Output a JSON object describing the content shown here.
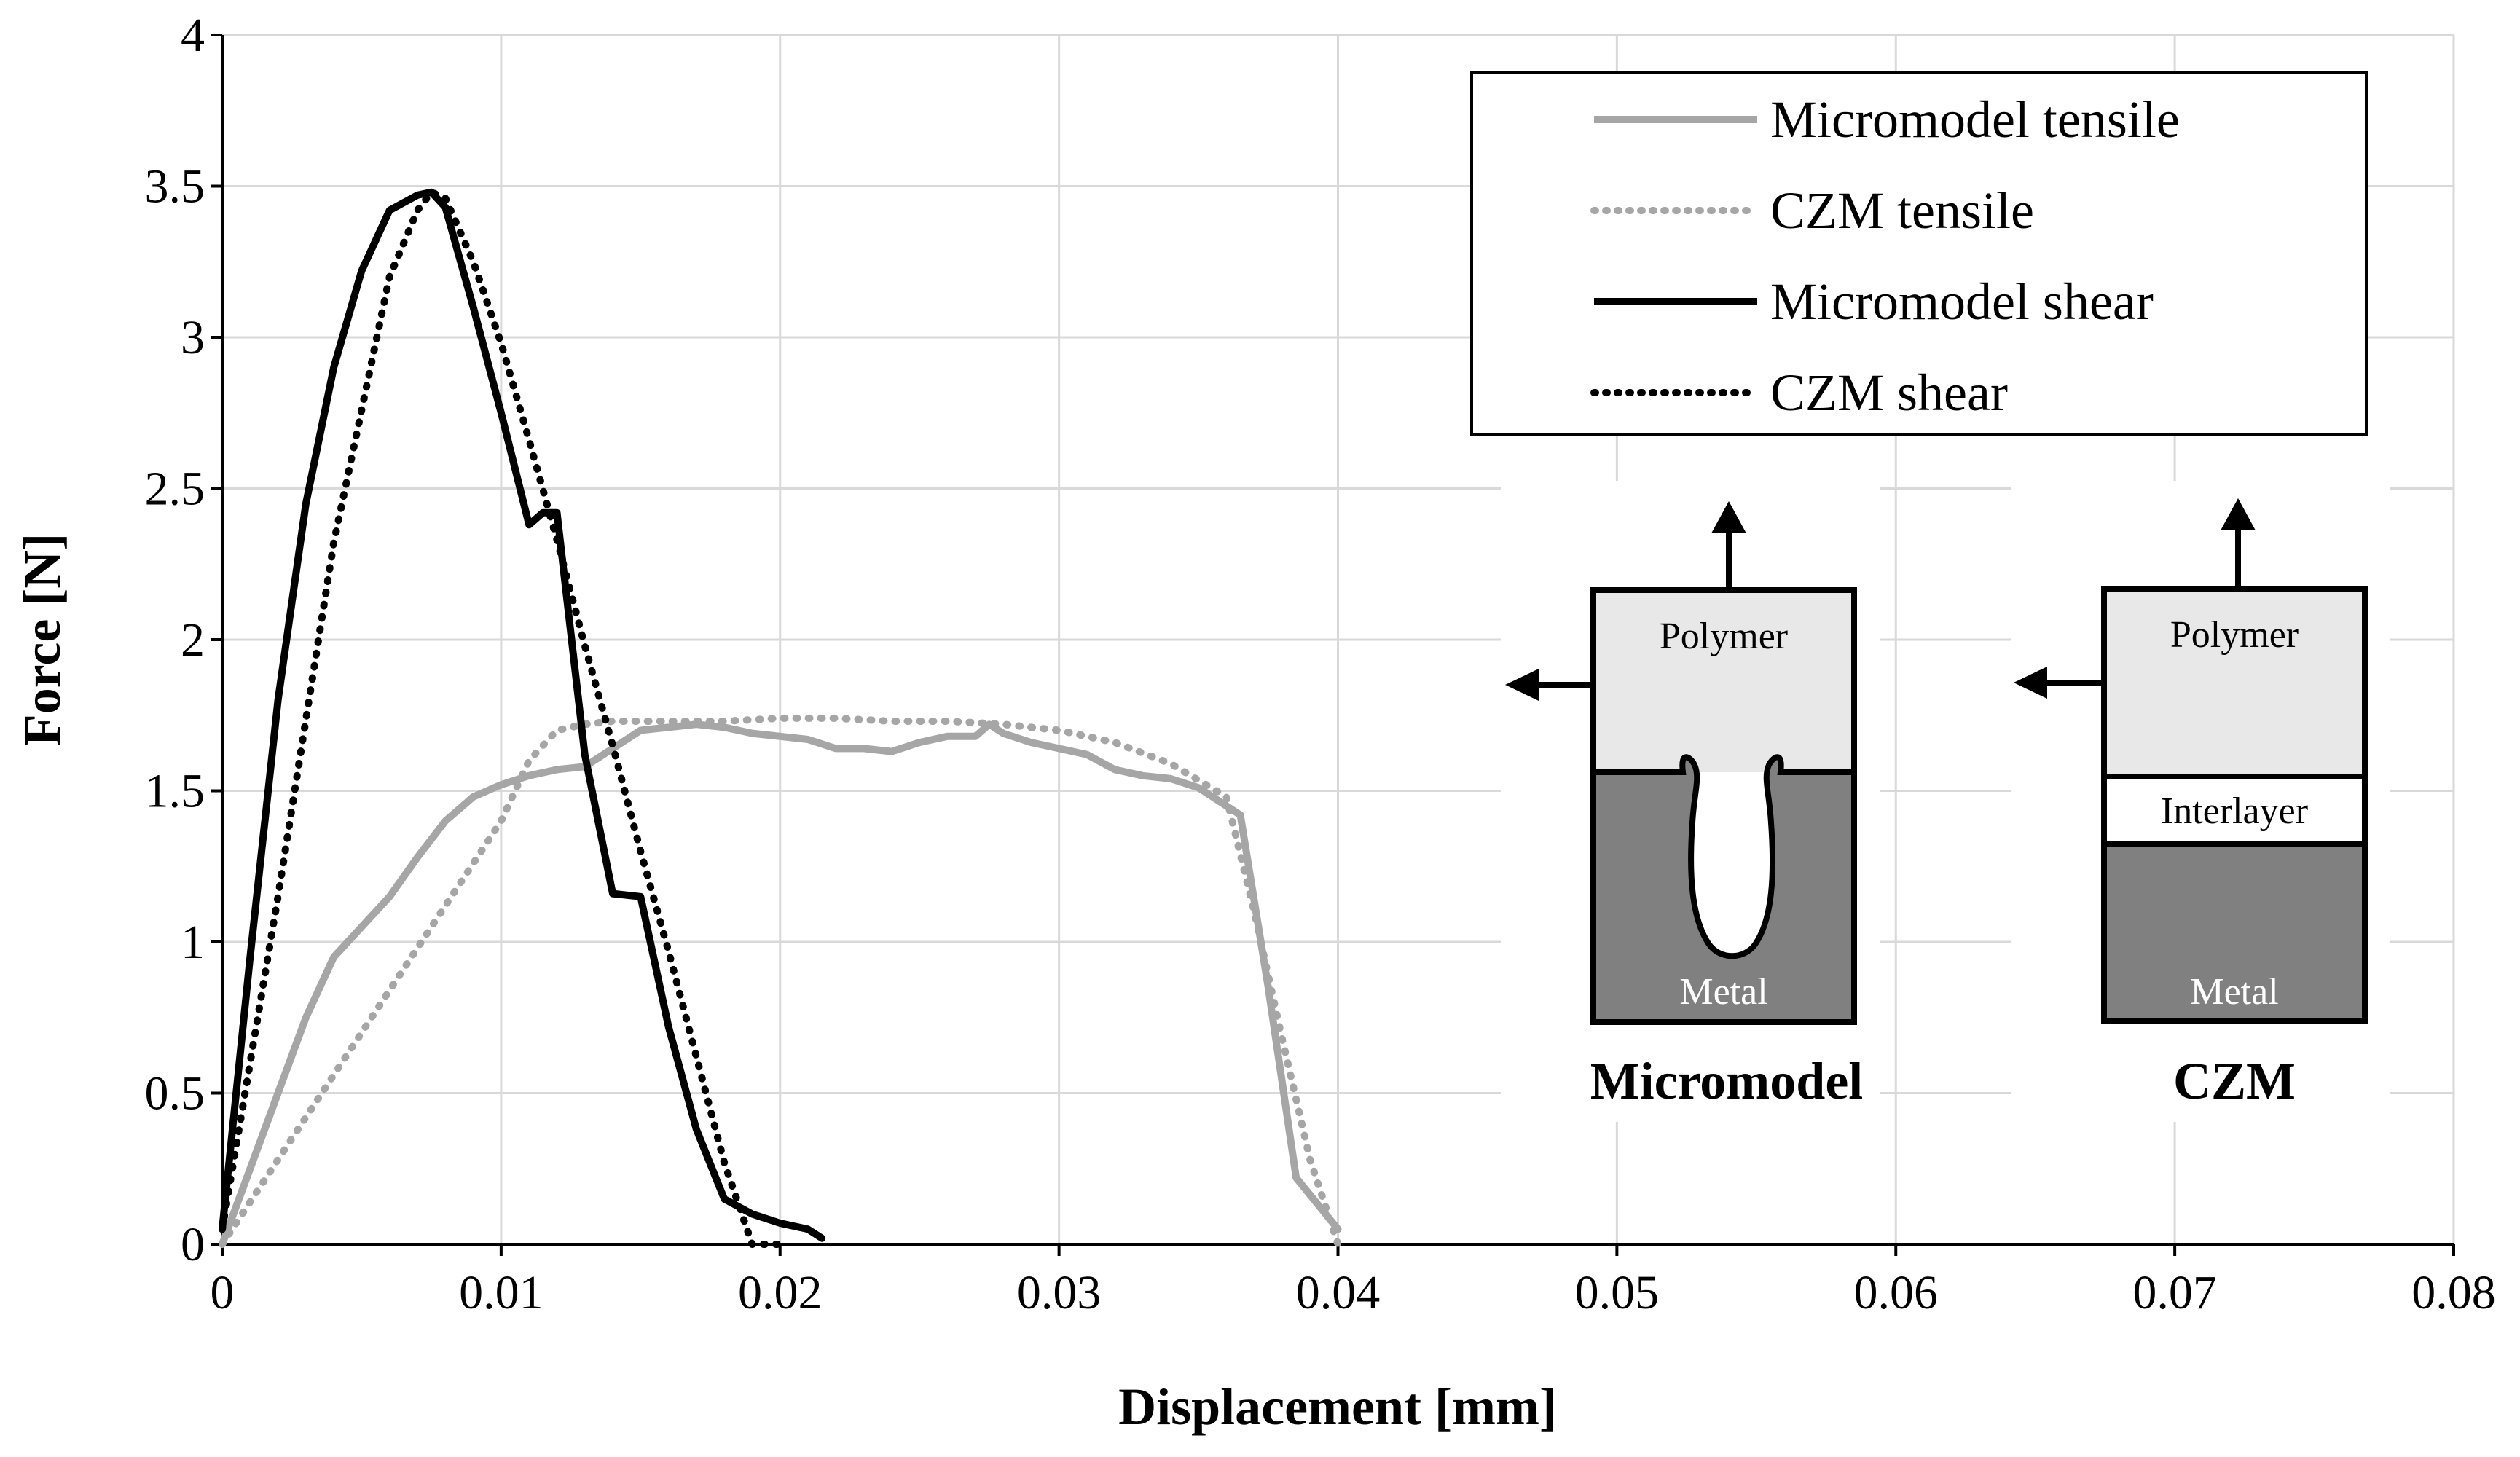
{
  "chart_data": {
    "type": "line",
    "title": "",
    "xlabel": "Displacement [mm]",
    "ylabel": "Force [N]",
    "xlim": [
      0,
      0.08
    ],
    "ylim": [
      0,
      4
    ],
    "x_ticks": [
      0,
      0.01,
      0.02,
      0.03,
      0.04,
      0.05,
      0.06,
      0.07,
      0.08
    ],
    "y_ticks": [
      0,
      0.5,
      1,
      1.5,
      2,
      2.5,
      3,
      3.5,
      4
    ],
    "x_tick_labels": [
      "0",
      "0.01",
      "0.02",
      "0.03",
      "0.04",
      "0.05",
      "0.06",
      "0.07",
      "0.08"
    ],
    "y_tick_labels": [
      "0",
      "0.5",
      "1",
      "1.5",
      "2",
      "2.5",
      "3",
      "3.5",
      "4"
    ],
    "grid": true,
    "legend_position": "top-right",
    "series": [
      {
        "name": "Micromodel tensile",
        "color": "#a6a6a6",
        "style": "solid",
        "x": [
          0,
          0.001,
          0.002,
          0.003,
          0.004,
          0.005,
          0.006,
          0.007,
          0.008,
          0.009,
          0.01,
          0.011,
          0.012,
          0.013,
          0.014,
          0.015,
          0.016,
          0.017,
          0.018,
          0.019,
          0.02,
          0.021,
          0.022,
          0.023,
          0.024,
          0.025,
          0.026,
          0.027,
          0.0275,
          0.028,
          0.029,
          0.03,
          0.031,
          0.032,
          0.033,
          0.034,
          0.035,
          0.0365,
          0.0375,
          0.0385,
          0.04
        ],
        "y": [
          0,
          0.25,
          0.5,
          0.75,
          0.95,
          1.05,
          1.15,
          1.28,
          1.4,
          1.48,
          1.52,
          1.55,
          1.57,
          1.58,
          1.64,
          1.7,
          1.71,
          1.72,
          1.71,
          1.69,
          1.68,
          1.67,
          1.64,
          1.64,
          1.63,
          1.66,
          1.68,
          1.68,
          1.72,
          1.69,
          1.66,
          1.64,
          1.62,
          1.57,
          1.55,
          1.54,
          1.51,
          1.42,
          0.85,
          0.22,
          0.05
        ]
      },
      {
        "name": "CZM tensile",
        "color": "#a6a6a6",
        "style": "dotted",
        "x": [
          0,
          0.002,
          0.004,
          0.006,
          0.008,
          0.01,
          0.011,
          0.012,
          0.013,
          0.014,
          0.016,
          0.018,
          0.02,
          0.022,
          0.024,
          0.026,
          0.028,
          0.03,
          0.032,
          0.034,
          0.036,
          0.037,
          0.038,
          0.039,
          0.04
        ],
        "y": [
          0,
          0.28,
          0.56,
          0.84,
          1.12,
          1.4,
          1.6,
          1.7,
          1.72,
          1.73,
          1.73,
          1.73,
          1.74,
          1.74,
          1.73,
          1.73,
          1.72,
          1.7,
          1.66,
          1.59,
          1.48,
          1.1,
          0.68,
          0.28,
          0.0
        ]
      },
      {
        "name": "Micromodel shear",
        "color": "#000000",
        "style": "solid",
        "x": [
          0,
          0.001,
          0.002,
          0.003,
          0.004,
          0.005,
          0.006,
          0.007,
          0.0075,
          0.008,
          0.009,
          0.01,
          0.011,
          0.0115,
          0.012,
          0.013,
          0.014,
          0.015,
          0.016,
          0.017,
          0.018,
          0.019,
          0.02,
          0.021,
          0.0215
        ],
        "y": [
          0.05,
          0.95,
          1.8,
          2.45,
          2.9,
          3.22,
          3.42,
          3.47,
          3.48,
          3.43,
          3.1,
          2.75,
          2.38,
          2.42,
          2.42,
          1.62,
          1.16,
          1.15,
          0.72,
          0.38,
          0.15,
          0.1,
          0.07,
          0.05,
          0.02
        ]
      },
      {
        "name": "CZM shear",
        "color": "#000000",
        "style": "dotted",
        "x": [
          0,
          0.002,
          0.004,
          0.006,
          0.007,
          0.0075,
          0.008,
          0.009,
          0.01,
          0.011,
          0.012,
          0.013,
          0.014,
          0.015,
          0.016,
          0.017,
          0.018,
          0.019,
          0.02
        ],
        "y": [
          0.05,
          1.15,
          2.32,
          3.2,
          3.42,
          3.48,
          3.46,
          3.25,
          2.98,
          2.66,
          2.33,
          1.98,
          1.65,
          1.3,
          0.97,
          0.62,
          0.27,
          0.0,
          0.0
        ]
      }
    ]
  },
  "schematic": {
    "micromodel": {
      "title": "Micromodel",
      "top_label": "Polymer",
      "bottom_label": "Metal"
    },
    "czm": {
      "title": "CZM",
      "top_label": "Polymer",
      "middle_label": "Interlayer",
      "bottom_label": "Metal"
    },
    "colors": {
      "polymer": "#e8e8e8",
      "metal": "#808080",
      "interlayer": "#ffffff"
    }
  }
}
